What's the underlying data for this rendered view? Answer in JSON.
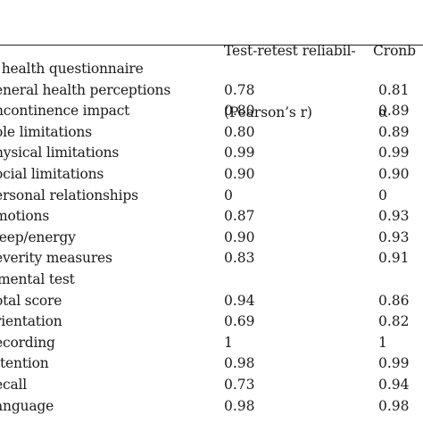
{
  "header": {
    "col1_line1": "Test-retest reliabil-",
    "col1_line2": "(Pearson’s r)",
    "col2_line1": "Cronb",
    "col2_line2": "α"
  },
  "rows": [
    {
      "label": "- health questionnaire",
      "v1": "",
      "v2": "",
      "section": true
    },
    {
      "label": "eneral health perceptions",
      "v1": "0.78",
      "v2": "0.81"
    },
    {
      "label": "ncontinence impact",
      "v1": "0.80",
      "v2": "0.89"
    },
    {
      "label": "ole limitations",
      "v1": "0.80",
      "v2": "0.89"
    },
    {
      "label": "hysical limitations",
      "v1": "0.99",
      "v2": "0.99"
    },
    {
      "label": "ocial limitations",
      "v1": "0.90",
      "v2": "0.90"
    },
    {
      "label": "ersonal relationships",
      "v1": "0",
      "v2": "0"
    },
    {
      "label": "motions",
      "v1": "0.87",
      "v2": "0.93"
    },
    {
      "label": "leep/energy",
      "v1": "0.90",
      "v2": "0.93"
    },
    {
      "label": "everity measures",
      "v1": "0.83",
      "v2": "0.91"
    },
    {
      "label": "-mental test",
      "v1": "",
      "v2": "",
      "section": true
    },
    {
      "label": "otal score",
      "v1": "0.94",
      "v2": "0.86"
    },
    {
      "label": "rientation",
      "v1": "0.69",
      "v2": "0.82"
    },
    {
      "label": "ecording",
      "v1": "1",
      "v2": "1"
    },
    {
      "label": "ttention",
      "v1": "0.98",
      "v2": "0.99"
    },
    {
      "label": "ecall",
      "v1": "0.73",
      "v2": "0.94"
    },
    {
      "label": "anguage",
      "v1": "0.98",
      "v2": "0.98"
    }
  ]
}
